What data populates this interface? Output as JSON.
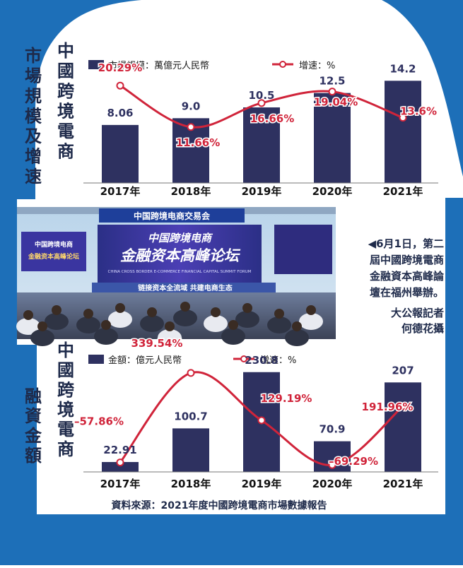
{
  "colors": {
    "frame_blue": "#1d6fb8",
    "bar_navy": "#2e3160",
    "growth_red": "#d0243a",
    "caption_navy": "#1e2a4a"
  },
  "chart_data": [
    {
      "type": "bar+line",
      "title": "中國跨境電商市場規模及增速",
      "title_lines": [
        "中國跨境電商",
        "市場規模及增速"
      ],
      "categories": [
        "2017年",
        "2018年",
        "2019年",
        "2020年",
        "2021年"
      ],
      "ylim": [
        0,
        16
      ],
      "growth_range": [
        0,
        24
      ],
      "series": [
        {
          "name": "市場規模：萬億元人民幣",
          "kind": "bar",
          "values": [
            8.06,
            9.0,
            10.5,
            12.5,
            14.2
          ],
          "labels": [
            "8.06",
            "9.0",
            "10.5",
            "12.5",
            "14.2"
          ]
        },
        {
          "name": "增速：%",
          "kind": "line",
          "values": [
            20.29,
            11.66,
            16.66,
            19.04,
            13.6
          ],
          "labels": [
            "20.29%",
            "11.66%",
            "16.66%",
            "19.04%",
            "13.6%"
          ]
        }
      ],
      "legend": "top-left"
    },
    {
      "type": "bar+line",
      "title": "中國跨境電商融資金額",
      "title_lines": [
        "中國跨境電商",
        "融資金額"
      ],
      "categories": [
        "2017年",
        "2018年",
        "2019年",
        "2020年",
        "2021年"
      ],
      "ylim": [
        0,
        250
      ],
      "growth_range": [
        -100,
        380
      ],
      "series": [
        {
          "name": "金額：億元人民幣",
          "kind": "bar",
          "values": [
            22.91,
            100.7,
            230.8,
            70.9,
            207
          ],
          "labels": [
            "22.91",
            "100.7",
            "230.8",
            "70.9",
            "207"
          ]
        },
        {
          "name": "增速：%",
          "kind": "line",
          "values": [
            -57.86,
            339.54,
            129.19,
            -69.29,
            191.96
          ],
          "labels": [
            "–57.86%",
            "339.54%",
            "129.19%",
            "–69.29%",
            "191.96%"
          ]
        }
      ],
      "legend": "top-left"
    }
  ],
  "photo": {
    "banner": "中国跨境电商交易会",
    "screen_title": "中国跨境电商",
    "screen_subtitle": "金融资本高峰论坛",
    "screen_english": "CHINA CROSS BORDER E-COMMERCE FINANCIAL CAPITAL SUMMIT FORUM",
    "left_screen_line1": "中国跨境电商",
    "left_screen_line2": "金融资本高峰论坛",
    "stage_slogan": "链接资本全流域 共建电商生态"
  },
  "caption": {
    "lines": [
      "◀6月1日，第二",
      "屆中國跨境電商",
      "金融資本高峰論",
      "壇在福州舉辦。"
    ],
    "credit_lines": [
      "大公報記者",
      "何德花攝"
    ]
  },
  "source": "資料來源：2021年度中國跨境電商市場數據報告"
}
